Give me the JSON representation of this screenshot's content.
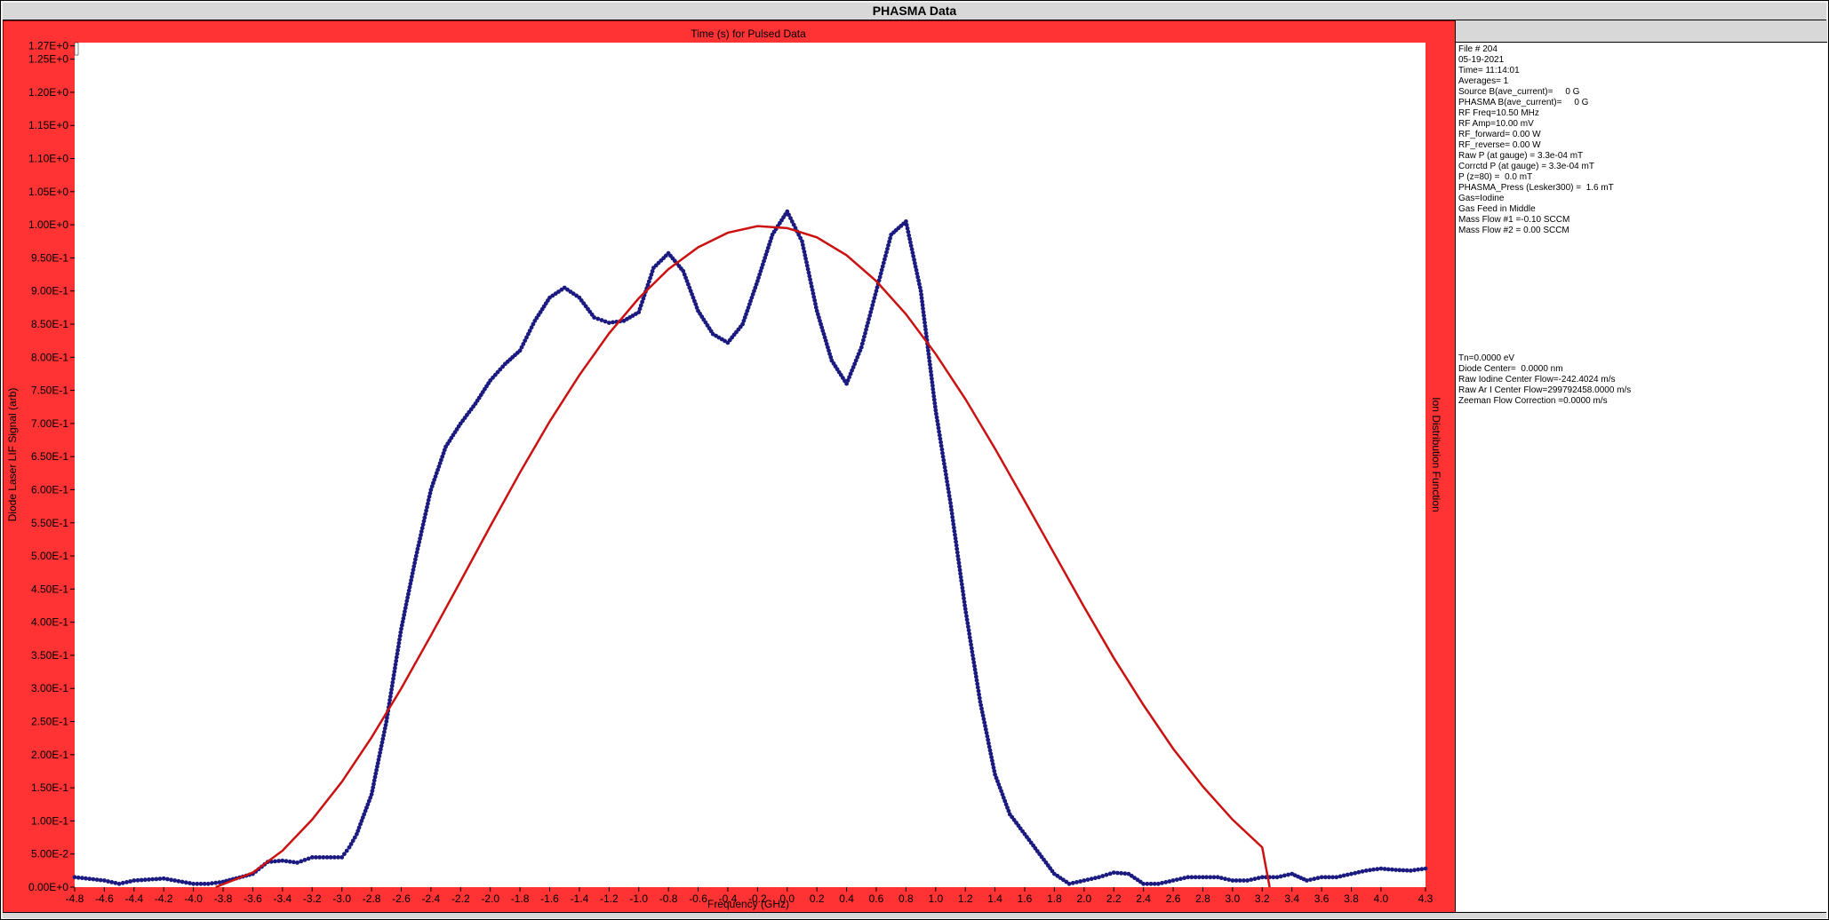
{
  "window": {
    "title": "PHASMA Data"
  },
  "info_top": [
    "File # 204",
    "05-19-2021",
    "Time= 11:14:01",
    "Averages= 1",
    "Source B(ave_current)=     0 G",
    "PHASMA B(ave_current)=     0 G",
    "RF Freq=10.50 MHz",
    "RF Amp=10.00 mV",
    "RF_forward= 0.00 W",
    "RF_reverse= 0.00 W",
    "Raw P (at gauge) = 3.3e-04 mT",
    "Corrctd P (at gauge) = 3.3e-04 mT",
    "P (z=80) =  0.0 mT",
    "PHASMA_Press (Lesker300) =  1.6 mT",
    "Gas=Iodine",
    "Gas Feed in Middle",
    "Mass Flow #1 =-0.10 SCCM",
    "Mass Flow #2 = 0.00 SCCM"
  ],
  "info_bottom": [
    "Tn=0.0000 eV",
    "Diode Center=  0.0000 nm",
    "Raw Iodine Center Flow=-242.4024 m/s",
    "Raw Ar I Center Flow=299792458.0000 m/s",
    "Zeeman Flow Correction =0.0000 m/s"
  ],
  "chart_data": {
    "type": "scatter",
    "title": "Time (s) for Pulsed Data",
    "xlabel": "Frequency (GHz)",
    "ylabel": "Diode Laser LIF Signal (arb)",
    "right_label": "Ion Distribution Function",
    "xlim": [
      -4.8,
      4.3
    ],
    "ylim": [
      0,
      1.275
    ],
    "x_ticks": [
      "-4.8",
      "-4.6",
      "-4.4",
      "-4.2",
      "-4.0",
      "-3.8",
      "-3.6",
      "-3.4",
      "-3.2",
      "-3.0",
      "-2.8",
      "-2.6",
      "-2.4",
      "-2.2",
      "-2.0",
      "-1.8",
      "-1.6",
      "-1.4",
      "-1.2",
      "-1.0",
      "-0.8",
      "-0.6",
      "-0.4",
      "-0.2",
      "0.0",
      "0.2",
      "0.4",
      "0.6",
      "0.8",
      "1.0",
      "1.2",
      "1.4",
      "1.6",
      "1.8",
      "2.0",
      "2.2",
      "2.4",
      "2.6",
      "2.8",
      "3.0",
      "3.2",
      "3.4",
      "3.6",
      "3.8",
      "4.0",
      "4.3"
    ],
    "y_ticks": [
      "0.00E+0",
      "5.00E-2",
      "1.00E-1",
      "1.50E-1",
      "2.00E-1",
      "2.50E-1",
      "3.00E-1",
      "3.50E-1",
      "4.00E-1",
      "4.50E-1",
      "5.00E-1",
      "5.50E-1",
      "6.00E-1",
      "6.50E-1",
      "7.00E-1",
      "7.50E-1",
      "8.00E-1",
      "8.50E-1",
      "9.00E-1",
      "9.50E-1",
      "1.00E+0",
      "1.05E+0",
      "1.10E+0",
      "1.15E+0",
      "1.20E+0",
      "1.25E+0",
      "1.27E+0"
    ],
    "grid": false,
    "series": [
      {
        "color": "#1a1a80",
        "style": "dots",
        "x": [
          -4.8,
          -4.6,
          -4.5,
          -4.4,
          -4.2,
          -4.0,
          -3.9,
          -3.8,
          -3.6,
          -3.5,
          -3.4,
          -3.3,
          -3.2,
          -3.1,
          -3.0,
          -2.95,
          -2.9,
          -2.8,
          -2.7,
          -2.6,
          -2.5,
          -2.4,
          -2.3,
          -2.2,
          -2.1,
          -2.0,
          -1.9,
          -1.8,
          -1.7,
          -1.6,
          -1.5,
          -1.4,
          -1.3,
          -1.2,
          -1.1,
          -1.0,
          -0.9,
          -0.8,
          -0.7,
          -0.6,
          -0.5,
          -0.4,
          -0.3,
          -0.2,
          -0.1,
          0.0,
          0.1,
          0.2,
          0.3,
          0.4,
          0.5,
          0.6,
          0.7,
          0.8,
          0.9,
          1.0,
          1.1,
          1.2,
          1.3,
          1.4,
          1.5,
          1.6,
          1.7,
          1.8,
          1.9,
          2.0,
          2.1,
          2.2,
          2.3,
          2.4,
          2.5,
          2.6,
          2.7,
          2.8,
          2.9,
          3.0,
          3.1,
          3.2,
          3.3,
          3.4,
          3.5,
          3.6,
          3.7,
          3.8,
          3.9,
          4.0,
          4.1,
          4.2,
          4.3
        ],
        "y": [
          0.015,
          0.01,
          0.005,
          0.01,
          0.013,
          0.005,
          0.005,
          0.008,
          0.02,
          0.038,
          0.04,
          0.037,
          0.045,
          0.045,
          0.045,
          0.06,
          0.08,
          0.14,
          0.25,
          0.39,
          0.5,
          0.6,
          0.665,
          0.7,
          0.73,
          0.765,
          0.79,
          0.81,
          0.855,
          0.89,
          0.905,
          0.89,
          0.86,
          0.852,
          0.855,
          0.868,
          0.935,
          0.957,
          0.93,
          0.87,
          0.835,
          0.822,
          0.85,
          0.915,
          0.985,
          1.02,
          0.975,
          0.87,
          0.795,
          0.76,
          0.815,
          0.9,
          0.985,
          1.005,
          0.9,
          0.72,
          0.58,
          0.42,
          0.28,
          0.17,
          0.11,
          0.08,
          0.05,
          0.02,
          0.005,
          0.01,
          0.015,
          0.022,
          0.02,
          0.005,
          0.005,
          0.01,
          0.015,
          0.015,
          0.015,
          0.01,
          0.01,
          0.015,
          0.015,
          0.02,
          0.01,
          0.015,
          0.015,
          0.02,
          0.025,
          0.028,
          0.026,
          0.025,
          0.028
        ]
      },
      {
        "color": "#cc1111",
        "style": "line",
        "x": [
          -3.85,
          -3.6,
          -3.4,
          -3.2,
          -3.0,
          -2.8,
          -2.6,
          -2.4,
          -2.2,
          -2.0,
          -1.8,
          -1.6,
          -1.4,
          -1.2,
          -1.0,
          -0.8,
          -0.6,
          -0.4,
          -0.2,
          0.0,
          0.2,
          0.4,
          0.6,
          0.8,
          1.0,
          1.2,
          1.4,
          1.6,
          1.8,
          2.0,
          2.2,
          2.4,
          2.6,
          2.8,
          3.0,
          3.2,
          3.25
        ],
        "y": [
          0.0,
          0.022,
          0.055,
          0.102,
          0.159,
          0.226,
          0.3,
          0.38,
          0.462,
          0.545,
          0.626,
          0.703,
          0.773,
          0.836,
          0.889,
          0.933,
          0.966,
          0.988,
          0.998,
          0.995,
          0.981,
          0.954,
          0.915,
          0.865,
          0.805,
          0.737,
          0.662,
          0.583,
          0.503,
          0.423,
          0.346,
          0.275,
          0.209,
          0.152,
          0.102,
          0.06,
          0.0
        ]
      }
    ]
  }
}
